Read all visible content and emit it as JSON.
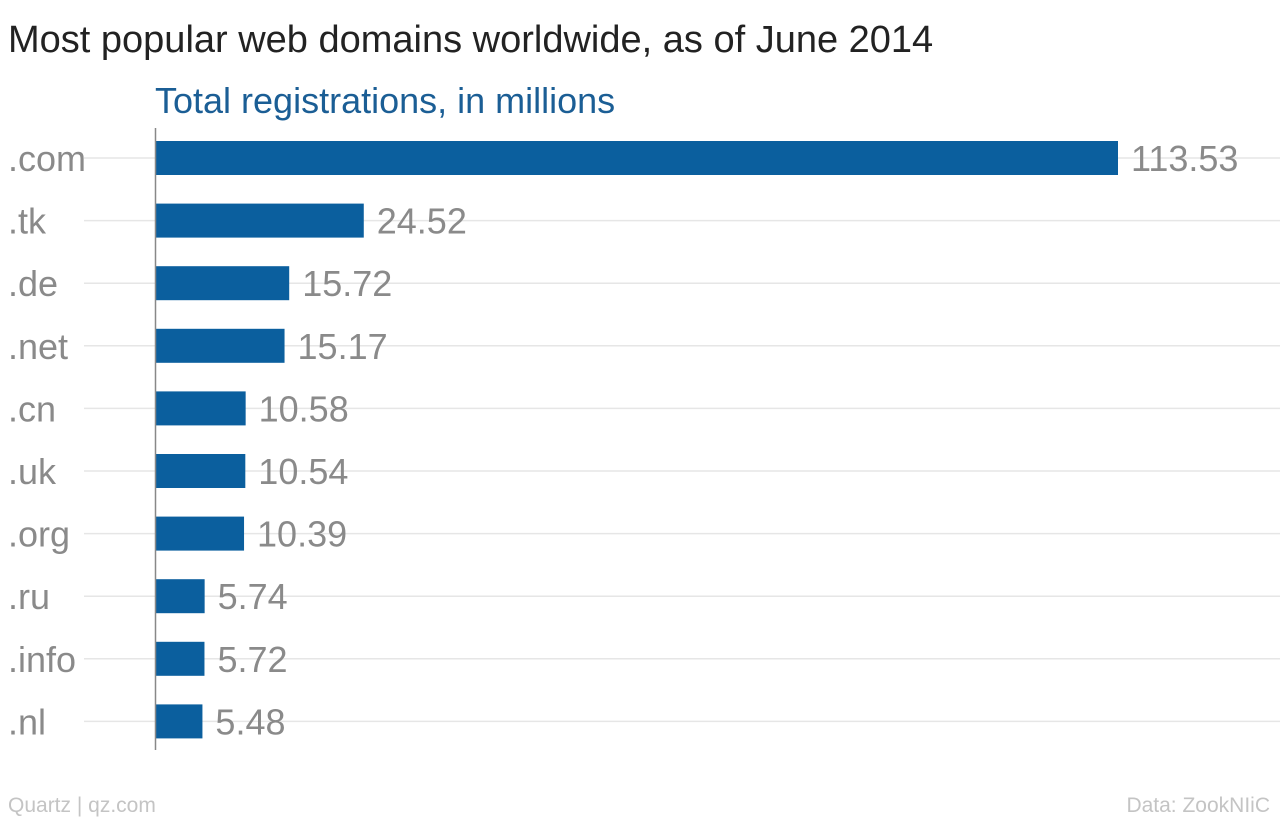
{
  "chart_data": {
    "type": "bar",
    "orientation": "horizontal",
    "title": "Most popular web domains worldwide, as of June 2014",
    "subtitle": "Total registrations, in millions",
    "categories": [
      ".com",
      ".tk",
      ".de",
      ".net",
      ".cn",
      ".uk",
      ".org",
      ".ru",
      ".info",
      ".nl"
    ],
    "values": [
      113.53,
      24.52,
      15.72,
      15.17,
      10.58,
      10.54,
      10.39,
      5.74,
      5.72,
      5.48
    ],
    "value_labels": [
      "113.53",
      "24.52",
      "15.72",
      "15.17",
      "10.58",
      "10.54",
      "10.39",
      "5.74",
      "5.72",
      "5.48"
    ],
    "xlim": [
      0,
      113.53
    ],
    "grid": true,
    "legend": "none"
  },
  "footer": {
    "source_left": "Quartz | qz.com",
    "source_right": "Data: ZookNIiC"
  },
  "colors": {
    "bar": "#0b5f9e",
    "title": "#222222",
    "subtitle": "#1b5e95",
    "labels": "#8a8a8a",
    "grid": "#e6e6e6",
    "axis": "#888888",
    "footer": "#c4c4c4"
  }
}
